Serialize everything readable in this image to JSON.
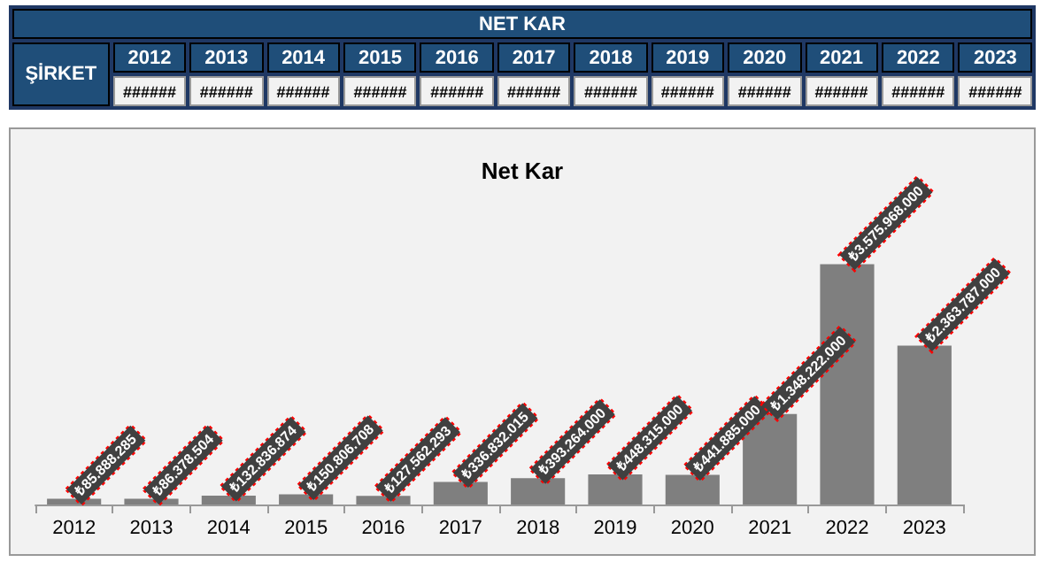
{
  "chart_data": {
    "type": "bar",
    "title": "Net Kar",
    "categories": [
      "2012",
      "2013",
      "2014",
      "2015",
      "2016",
      "2017",
      "2018",
      "2019",
      "2020",
      "2021",
      "2022",
      "2023"
    ],
    "values": [
      85888285,
      86378504,
      132836874,
      150806708,
      127562293,
      336832015,
      393264000,
      448315000,
      441885000,
      1348222000,
      3575968000,
      2363787000
    ],
    "value_labels": [
      "₺85.888.285",
      "₺86.378.504",
      "₺132.836.874",
      "₺150.806.708",
      "₺127.562.293",
      "₺336.832.015",
      "₺393.264.000",
      "₺448.315.000",
      "₺441.885.000",
      "₺1.348.222.000",
      "₺3.575.968.000",
      "₺2.363.787.000"
    ],
    "color": "#7f7f7f",
    "annotations": [
      "NET KAR",
      "ŞİRKET",
      "######",
      "######",
      "######",
      "######",
      "######",
      "######",
      "######",
      "######",
      "######",
      "######",
      "######",
      "######"
    ]
  }
}
